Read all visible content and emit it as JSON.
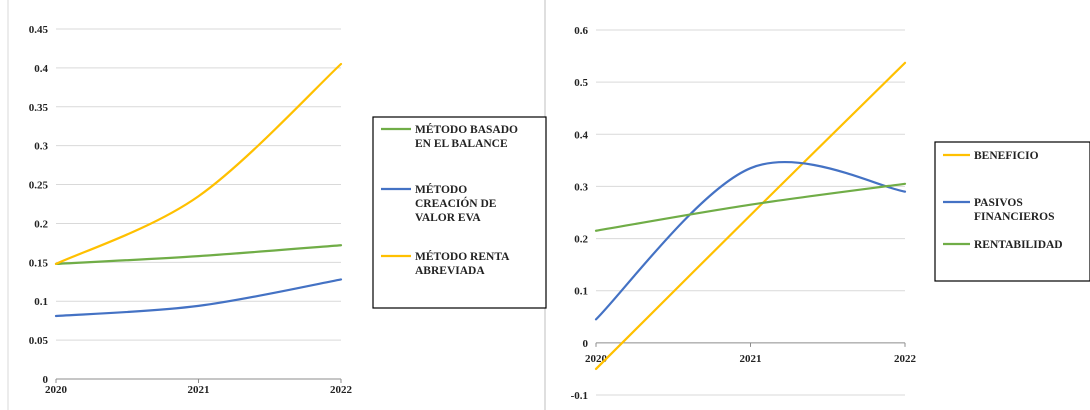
{
  "chart_data": [
    {
      "type": "line",
      "title": "",
      "xlabel": "",
      "ylabel": "",
      "categories": [
        "2020",
        "2021",
        "2022"
      ],
      "ylim": [
        0,
        0.45
      ],
      "yticks": [
        "0",
        "0.05",
        "0.1",
        "0.15",
        "0.2",
        "0.25",
        "0.3",
        "0.35",
        "0.4",
        "0.45"
      ],
      "grid": "horizontal",
      "legend_position": "right",
      "series": [
        {
          "name": "MÉTODO BASADO EN EL BALANCE",
          "legend_lines": [
            "MÉTODO BASADO",
            "EN EL BALANCE"
          ],
          "color": "#70AD47",
          "values": [
            0.148,
            0.158,
            0.172
          ]
        },
        {
          "name": "MÉTODO CREACIÓN DE VALOR EVA",
          "legend_lines": [
            "MÉTODO",
            "CREACIÓN DE",
            "VALOR EVA"
          ],
          "color": "#4472C4",
          "values": [
            0.081,
            0.094,
            0.128
          ]
        },
        {
          "name": "MÉTODO RENTA ABREVIADA",
          "legend_lines": [
            "MÉTODO RENTA",
            "ABREVIADA"
          ],
          "color": "#FFC000",
          "values": [
            0.148,
            0.235,
            0.405
          ]
        }
      ]
    },
    {
      "type": "line",
      "title": "",
      "xlabel": "",
      "ylabel": "",
      "categories": [
        "2020",
        "2021",
        "2022"
      ],
      "ylim": [
        -0.1,
        0.6
      ],
      "yticks": [
        "-0.1",
        "0",
        "0.1",
        "0.2",
        "0.3",
        "0.4",
        "0.5",
        "0.6"
      ],
      "grid": "horizontal",
      "legend_position": "right",
      "series": [
        {
          "name": "BENEFICIO",
          "legend_lines": [
            "BENEFICIO"
          ],
          "color": "#FFC000",
          "values": [
            -0.05,
            0.245,
            0.537
          ]
        },
        {
          "name": "PASIVOS FINANCIEROS",
          "legend_lines": [
            "PASIVOS",
            "FINANCIEROS"
          ],
          "color": "#4472C4",
          "values": [
            0.045,
            0.335,
            0.29
          ]
        },
        {
          "name": "RENTABILIDAD",
          "legend_lines": [
            "RENTABILIDAD"
          ],
          "color": "#70AD47",
          "values": [
            0.215,
            0.265,
            0.305
          ]
        }
      ]
    }
  ]
}
